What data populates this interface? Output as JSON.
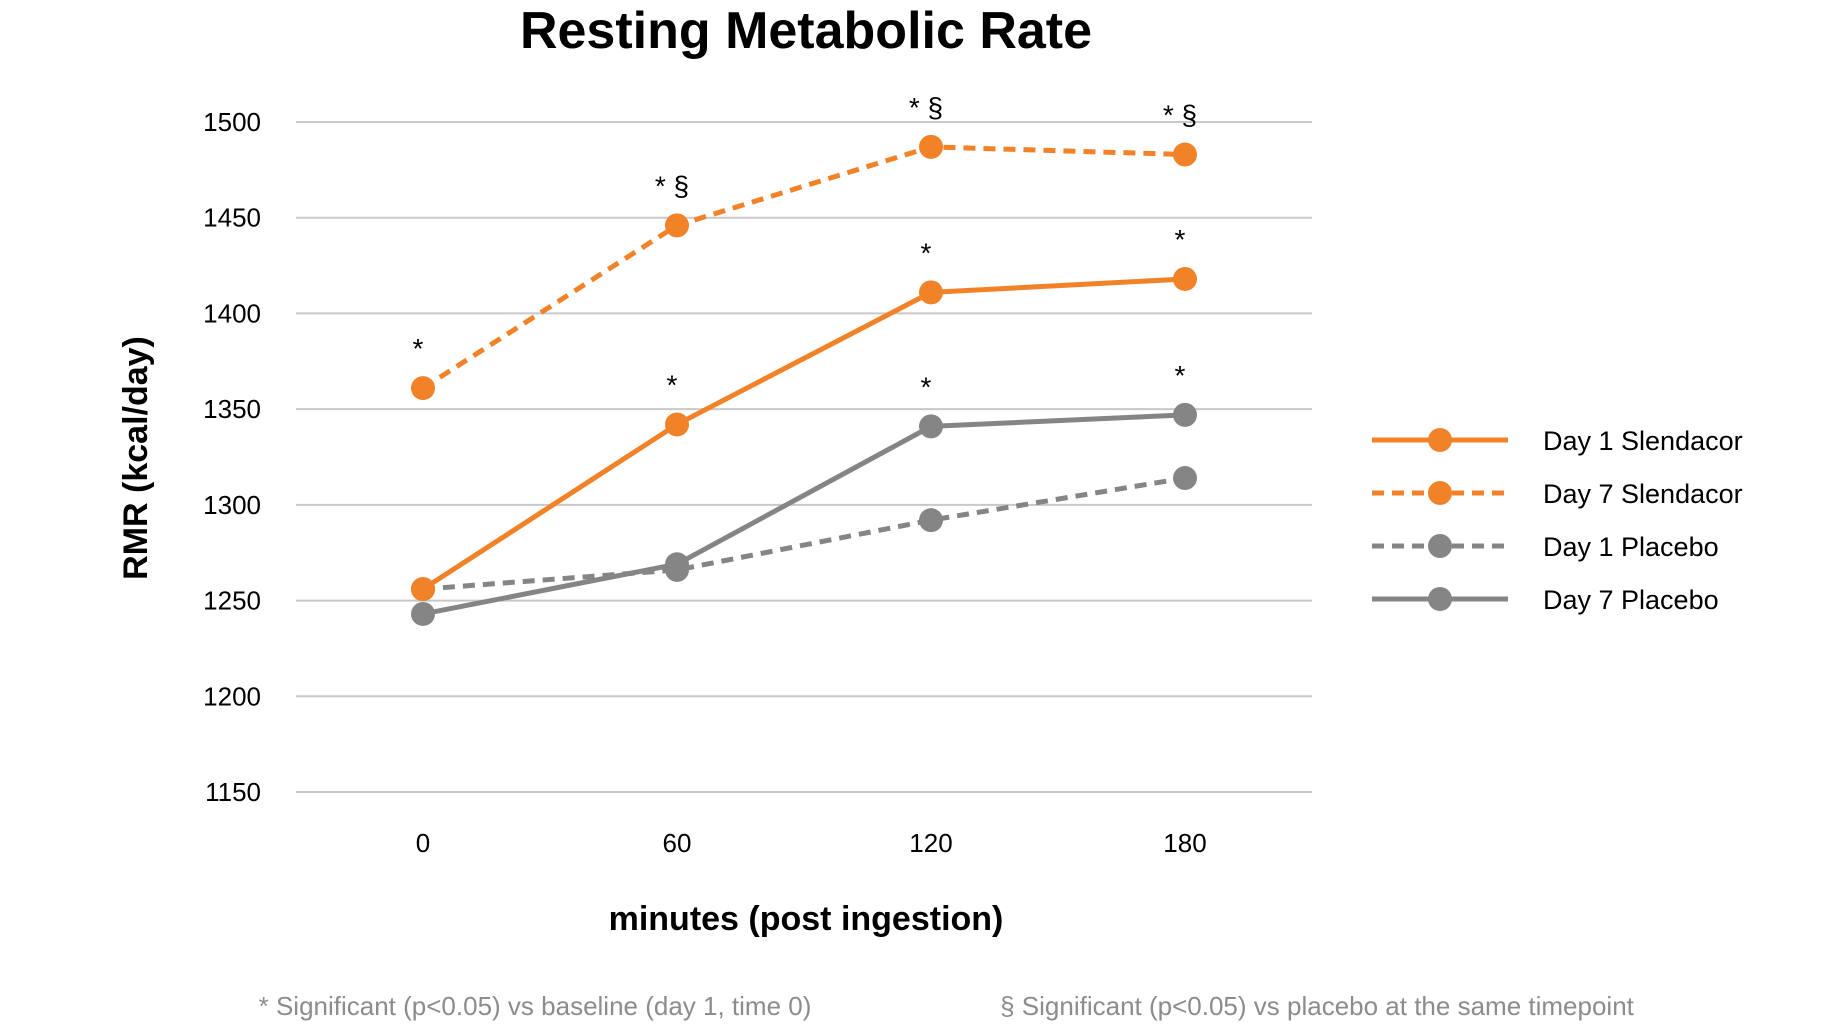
{
  "chart_data": {
    "type": "line",
    "title": "Resting Metabolic Rate",
    "xlabel": "minutes (post ingestion)",
    "ylabel": "RMR (kcal/day)",
    "categories": [
      "0",
      "60",
      "120",
      "180"
    ],
    "y_ticks": [
      "1150",
      "1200",
      "1250",
      "1300",
      "1350",
      "1400",
      "1450",
      "1500"
    ],
    "ylim": [
      1150,
      1500
    ],
    "grid": true,
    "legend_position": "right",
    "series": [
      {
        "name": "Day 1 Slendacor",
        "values": [
          1256,
          1342,
          1411,
          1418
        ],
        "color": "#F28228",
        "dash": "solid",
        "labels": [
          "",
          "*",
          "*",
          "*"
        ]
      },
      {
        "name": "Day 7 Slendacor",
        "values": [
          1361,
          1446,
          1487,
          1483
        ],
        "color": "#F28228",
        "dash": "dashed",
        "labels": [
          "*",
          "* §",
          "* §",
          "* §"
        ]
      },
      {
        "name": "Day 1 Placebo",
        "values": [
          1256,
          1266,
          1292,
          1314
        ],
        "color": "#858585",
        "dash": "dashed",
        "labels": [
          "",
          "",
          "",
          ""
        ]
      },
      {
        "name": "Day 7 Placebo",
        "values": [
          1243,
          1269,
          1341,
          1347
        ],
        "color": "#858585",
        "dash": "solid",
        "labels": [
          "",
          "",
          "*",
          "*"
        ]
      }
    ],
    "footnotes": [
      "* Significant (p<0.05) vs baseline (day 1, time 0)",
      "§ Significant (p<0.05) vs placebo at the same timepoint"
    ]
  }
}
